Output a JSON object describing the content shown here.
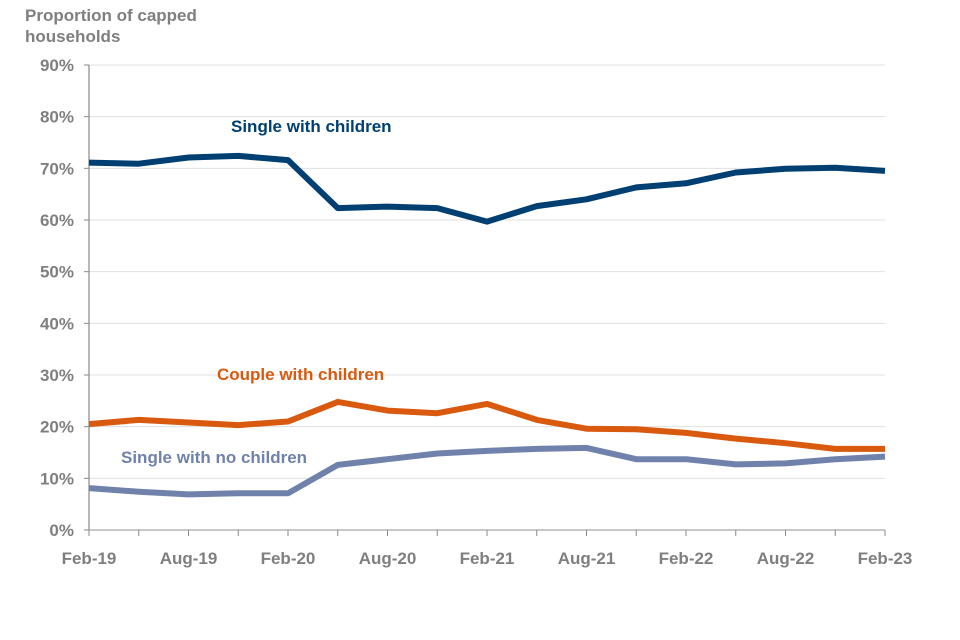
{
  "chart_data": {
    "type": "line",
    "title": "",
    "ylabel": "Proportion of capped households",
    "xlabel": "",
    "ylim": [
      0,
      90
    ],
    "y_ticks": [
      "0%",
      "10%",
      "20%",
      "30%",
      "40%",
      "50%",
      "60%",
      "70%",
      "80%",
      "90%"
    ],
    "y_tick_values": [
      0,
      10,
      20,
      30,
      40,
      50,
      60,
      70,
      80,
      90
    ],
    "grid": true,
    "legend": "inline labels",
    "x": [
      "Feb-19",
      "May-19",
      "Aug-19",
      "Nov-19",
      "Feb-20",
      "May-20",
      "Aug-20",
      "Nov-20",
      "Feb-21",
      "May-21",
      "Aug-21",
      "Nov-21",
      "Feb-22",
      "May-22",
      "Aug-22",
      "Nov-22",
      "Feb-23"
    ],
    "x_tick_labels": [
      "Feb-19",
      "Aug-19",
      "Feb-20",
      "Aug-20",
      "Feb-21",
      "Aug-21",
      "Feb-22",
      "Aug-22",
      "Feb-23"
    ],
    "series": [
      {
        "name": "Single with children",
        "color": "#003f72",
        "values": [
          71.1,
          70.9,
          72.1,
          72.4,
          71.6,
          62.3,
          62.6,
          62.3,
          59.7,
          62.7,
          64.0,
          66.3,
          67.1,
          69.2,
          69.9,
          70.1,
          69.5
        ]
      },
      {
        "name": "Couple with children",
        "color": "#d95a0f",
        "values": [
          20.5,
          21.3,
          20.8,
          20.3,
          21.0,
          24.8,
          23.1,
          22.6,
          24.4,
          21.3,
          19.6,
          19.5,
          18.8,
          17.7,
          16.8,
          15.7,
          15.7
        ]
      },
      {
        "name": "Single with no children",
        "color": "#7082ac",
        "values": [
          8.1,
          7.4,
          6.9,
          7.1,
          7.1,
          12.6,
          13.7,
          14.8,
          15.3,
          15.7,
          15.9,
          13.7,
          13.7,
          12.7,
          12.9,
          13.7,
          14.2
        ]
      }
    ]
  },
  "labels": {
    "y_title": "Proportion of capped households",
    "single_with_children": "Single with children",
    "couple_with_children": "Couple with children",
    "single_no_children": "Single with no children"
  },
  "colors": {
    "axis_text": "#7f7f7f",
    "grid": "#e0e0e0",
    "axis": "#898989"
  }
}
